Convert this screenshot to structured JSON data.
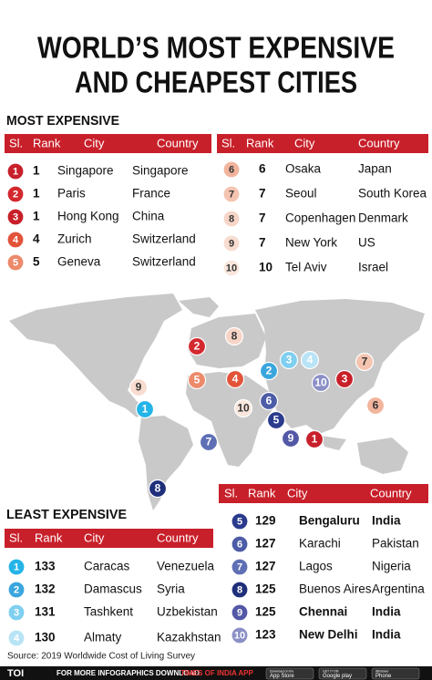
{
  "title": [
    "WORLD’S MOST EXPENSIVE",
    "AND CHEAPEST CITIES"
  ],
  "most_expensive": {
    "heading": "MOST EXPENSIVE",
    "tables": [
      {
        "columns": [
          "Sl.",
          "Rank",
          "City",
          "Country"
        ],
        "rows": [
          [
            1,
            1,
            "Singapore",
            "Singapore"
          ],
          [
            2,
            1,
            "Paris",
            "France"
          ],
          [
            3,
            1,
            "Hong Kong",
            "China"
          ],
          [
            4,
            4,
            "Zurich",
            "Switzerland"
          ],
          [
            5,
            5,
            "Geneva",
            "Switzerland"
          ]
        ]
      },
      {
        "columns": [
          "Sl.",
          "Rank",
          "City",
          "Country"
        ],
        "rows": [
          [
            6,
            6,
            "Osaka",
            "Japan"
          ],
          [
            7,
            7,
            "Seoul",
            "South Korea"
          ],
          [
            8,
            7,
            "Copenhagen",
            "Denmark"
          ],
          [
            9,
            7,
            "New York",
            "US"
          ],
          [
            10,
            10,
            "Tel Aviv",
            "Israel"
          ]
        ]
      }
    ]
  },
  "least_expensive": {
    "heading": "LEAST EXPENSIVE",
    "tables": [
      {
        "columns": [
          "Sl.",
          "Rank",
          "City",
          "Country"
        ],
        "rows": [
          [
            1,
            133,
            "Caracas",
            "Venezuela"
          ],
          [
            2,
            132,
            "Damascus",
            "Syria"
          ],
          [
            3,
            131,
            "Tashkent",
            "Uzbekistan"
          ],
          [
            4,
            130,
            "Almaty",
            "Kazakhstan"
          ]
        ]
      },
      {
        "columns": [
          "Sl.",
          "Rank",
          "City",
          "Country"
        ],
        "rows": [
          [
            5,
            129,
            "Bengaluru",
            "India"
          ],
          [
            6,
            127,
            "Karachi",
            "Pakistan"
          ],
          [
            7,
            127,
            "Lagos",
            "Nigeria"
          ],
          [
            8,
            125,
            "Buenos Aires",
            "Argentina"
          ],
          [
            9,
            125,
            "Chennai",
            "India"
          ],
          [
            10,
            123,
            "New Delhi",
            "India"
          ]
        ]
      }
    ]
  },
  "source": "Source: 2019 Worldwide Cost of Living Survey",
  "footer": {
    "logo": "TOI",
    "text": "FOR MORE INFOGRAPHICS DOWNLOAD",
    "app": "TIMES OF INDIA APP",
    "badges": [
      [
        "Download on the",
        "App Store"
      ],
      [
        "GET IT ON",
        "Google play"
      ],
      [
        "Windows",
        "Phone"
      ]
    ]
  }
}
